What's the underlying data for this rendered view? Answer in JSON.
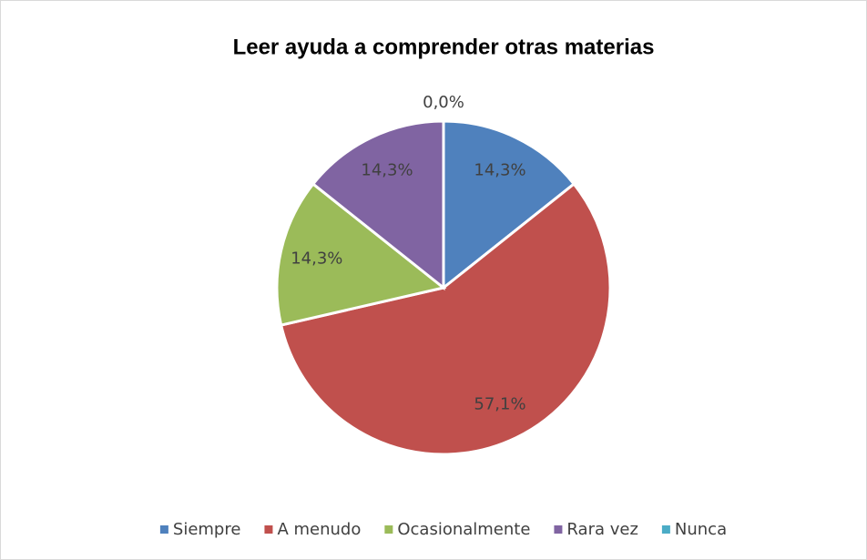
{
  "chart_data": {
    "type": "pie",
    "title": "Leer ayuda a comprender otras materias",
    "categories": [
      "Siempre",
      "A menudo",
      "Ocasionalmente",
      "Rara vez",
      "Nunca"
    ],
    "values": [
      14.3,
      57.1,
      14.3,
      14.3,
      0.0
    ],
    "value_labels": [
      "14,3%",
      "57,1%",
      "14,3%",
      "14,3%",
      "0,0%"
    ],
    "colors": [
      "#4f81bd",
      "#c0504d",
      "#9bbb59",
      "#8064a2",
      "#4bacc6"
    ],
    "legend": "bottom"
  }
}
